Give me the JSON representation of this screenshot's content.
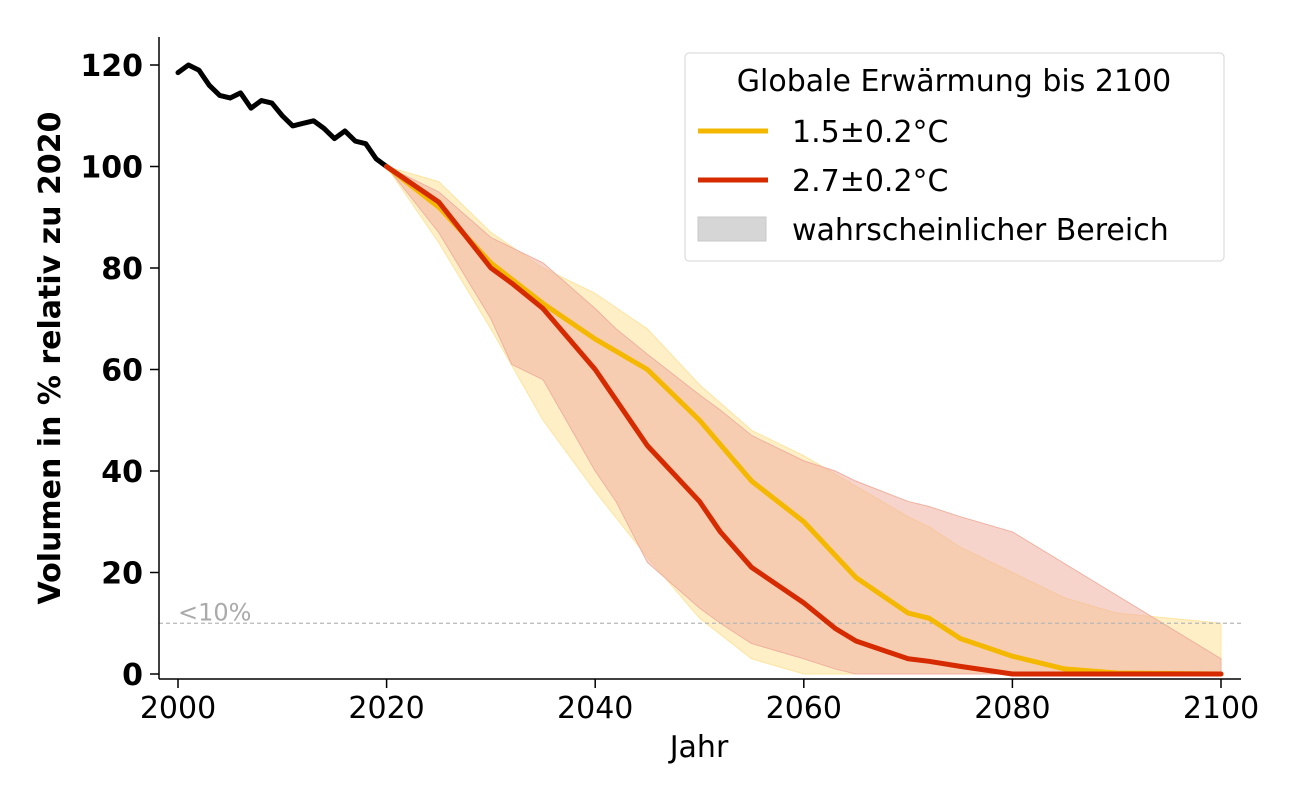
{
  "chart_data": {
    "type": "line",
    "xlabel": "Jahr",
    "ylabel": "Volumen in % relativ zu 2020",
    "xlim": [
      1998,
      2102
    ],
    "ylim": [
      -1,
      126
    ],
    "xticks": [
      2000,
      2020,
      2040,
      2060,
      2080,
      2100
    ],
    "yticks": [
      0,
      20,
      40,
      60,
      80,
      100,
      120
    ],
    "grid": false,
    "legend": {
      "title": "Globale Erwärmung bis 2100",
      "placement": "top-right",
      "entries": [
        "1.5±0.2°C",
        "2.7±0.2°C",
        "wahrscheinlicher Bereich"
      ]
    },
    "reference_line": {
      "y": 10,
      "label": "<10%",
      "color": "#b8b8b8"
    },
    "historical": {
      "color": "#000000",
      "x": [
        2000,
        2001,
        2002,
        2003,
        2004,
        2005,
        2006,
        2007,
        2008,
        2009,
        2010,
        2011,
        2012,
        2013,
        2014,
        2015,
        2016,
        2017,
        2018,
        2019,
        2020
      ],
      "y": [
        118.5,
        120,
        119,
        116,
        114,
        113.5,
        114.5,
        111.5,
        113,
        112.5,
        110,
        108,
        108.5,
        109,
        107.5,
        105.5,
        107,
        105,
        104.5,
        101.5,
        100
      ]
    },
    "series": [
      {
        "name": "1.5±0.2°C",
        "color": "#f5b800",
        "band_color": "#fde4a0",
        "x": [
          2020,
          2025,
          2030,
          2035,
          2040,
          2045,
          2050,
          2055,
          2060,
          2065,
          2070,
          2072,
          2075,
          2080,
          2085,
          2090,
          2100
        ],
        "y": [
          100,
          92,
          81,
          73,
          66,
          60,
          50,
          38,
          30,
          19,
          12,
          11,
          7,
          3.5,
          1,
          0.2,
          0
        ],
        "lower": [
          100,
          85,
          68,
          50,
          36,
          23,
          11,
          3,
          0,
          0,
          0,
          0,
          0,
          0,
          0,
          0,
          0
        ],
        "upper": [
          100,
          97,
          87,
          80,
          75,
          68,
          57,
          48,
          43,
          37,
          31,
          29,
          25,
          20,
          15,
          12,
          10
        ]
      },
      {
        "name": "2.7±0.2°C",
        "color": "#d62a00",
        "band_color": "#f0b0a0",
        "x": [
          2020,
          2025,
          2030,
          2032,
          2035,
          2040,
          2042,
          2045,
          2050,
          2052,
          2055,
          2060,
          2063,
          2065,
          2070,
          2072,
          2075,
          2080,
          2100
        ],
        "y": [
          100,
          93,
          80,
          77,
          72,
          60,
          54,
          45,
          34,
          28,
          21,
          14,
          9,
          6.5,
          3,
          2.5,
          1.5,
          0,
          0
        ],
        "lower": [
          100,
          87,
          70,
          61,
          58,
          40,
          34,
          22,
          13,
          10,
          6,
          3,
          1,
          0,
          0,
          0,
          0,
          0,
          0
        ],
        "upper": [
          100,
          95,
          86,
          84,
          81,
          72,
          68,
          63,
          55,
          52,
          47,
          42,
          40,
          38,
          34,
          33,
          31,
          28,
          3
        ]
      }
    ]
  }
}
